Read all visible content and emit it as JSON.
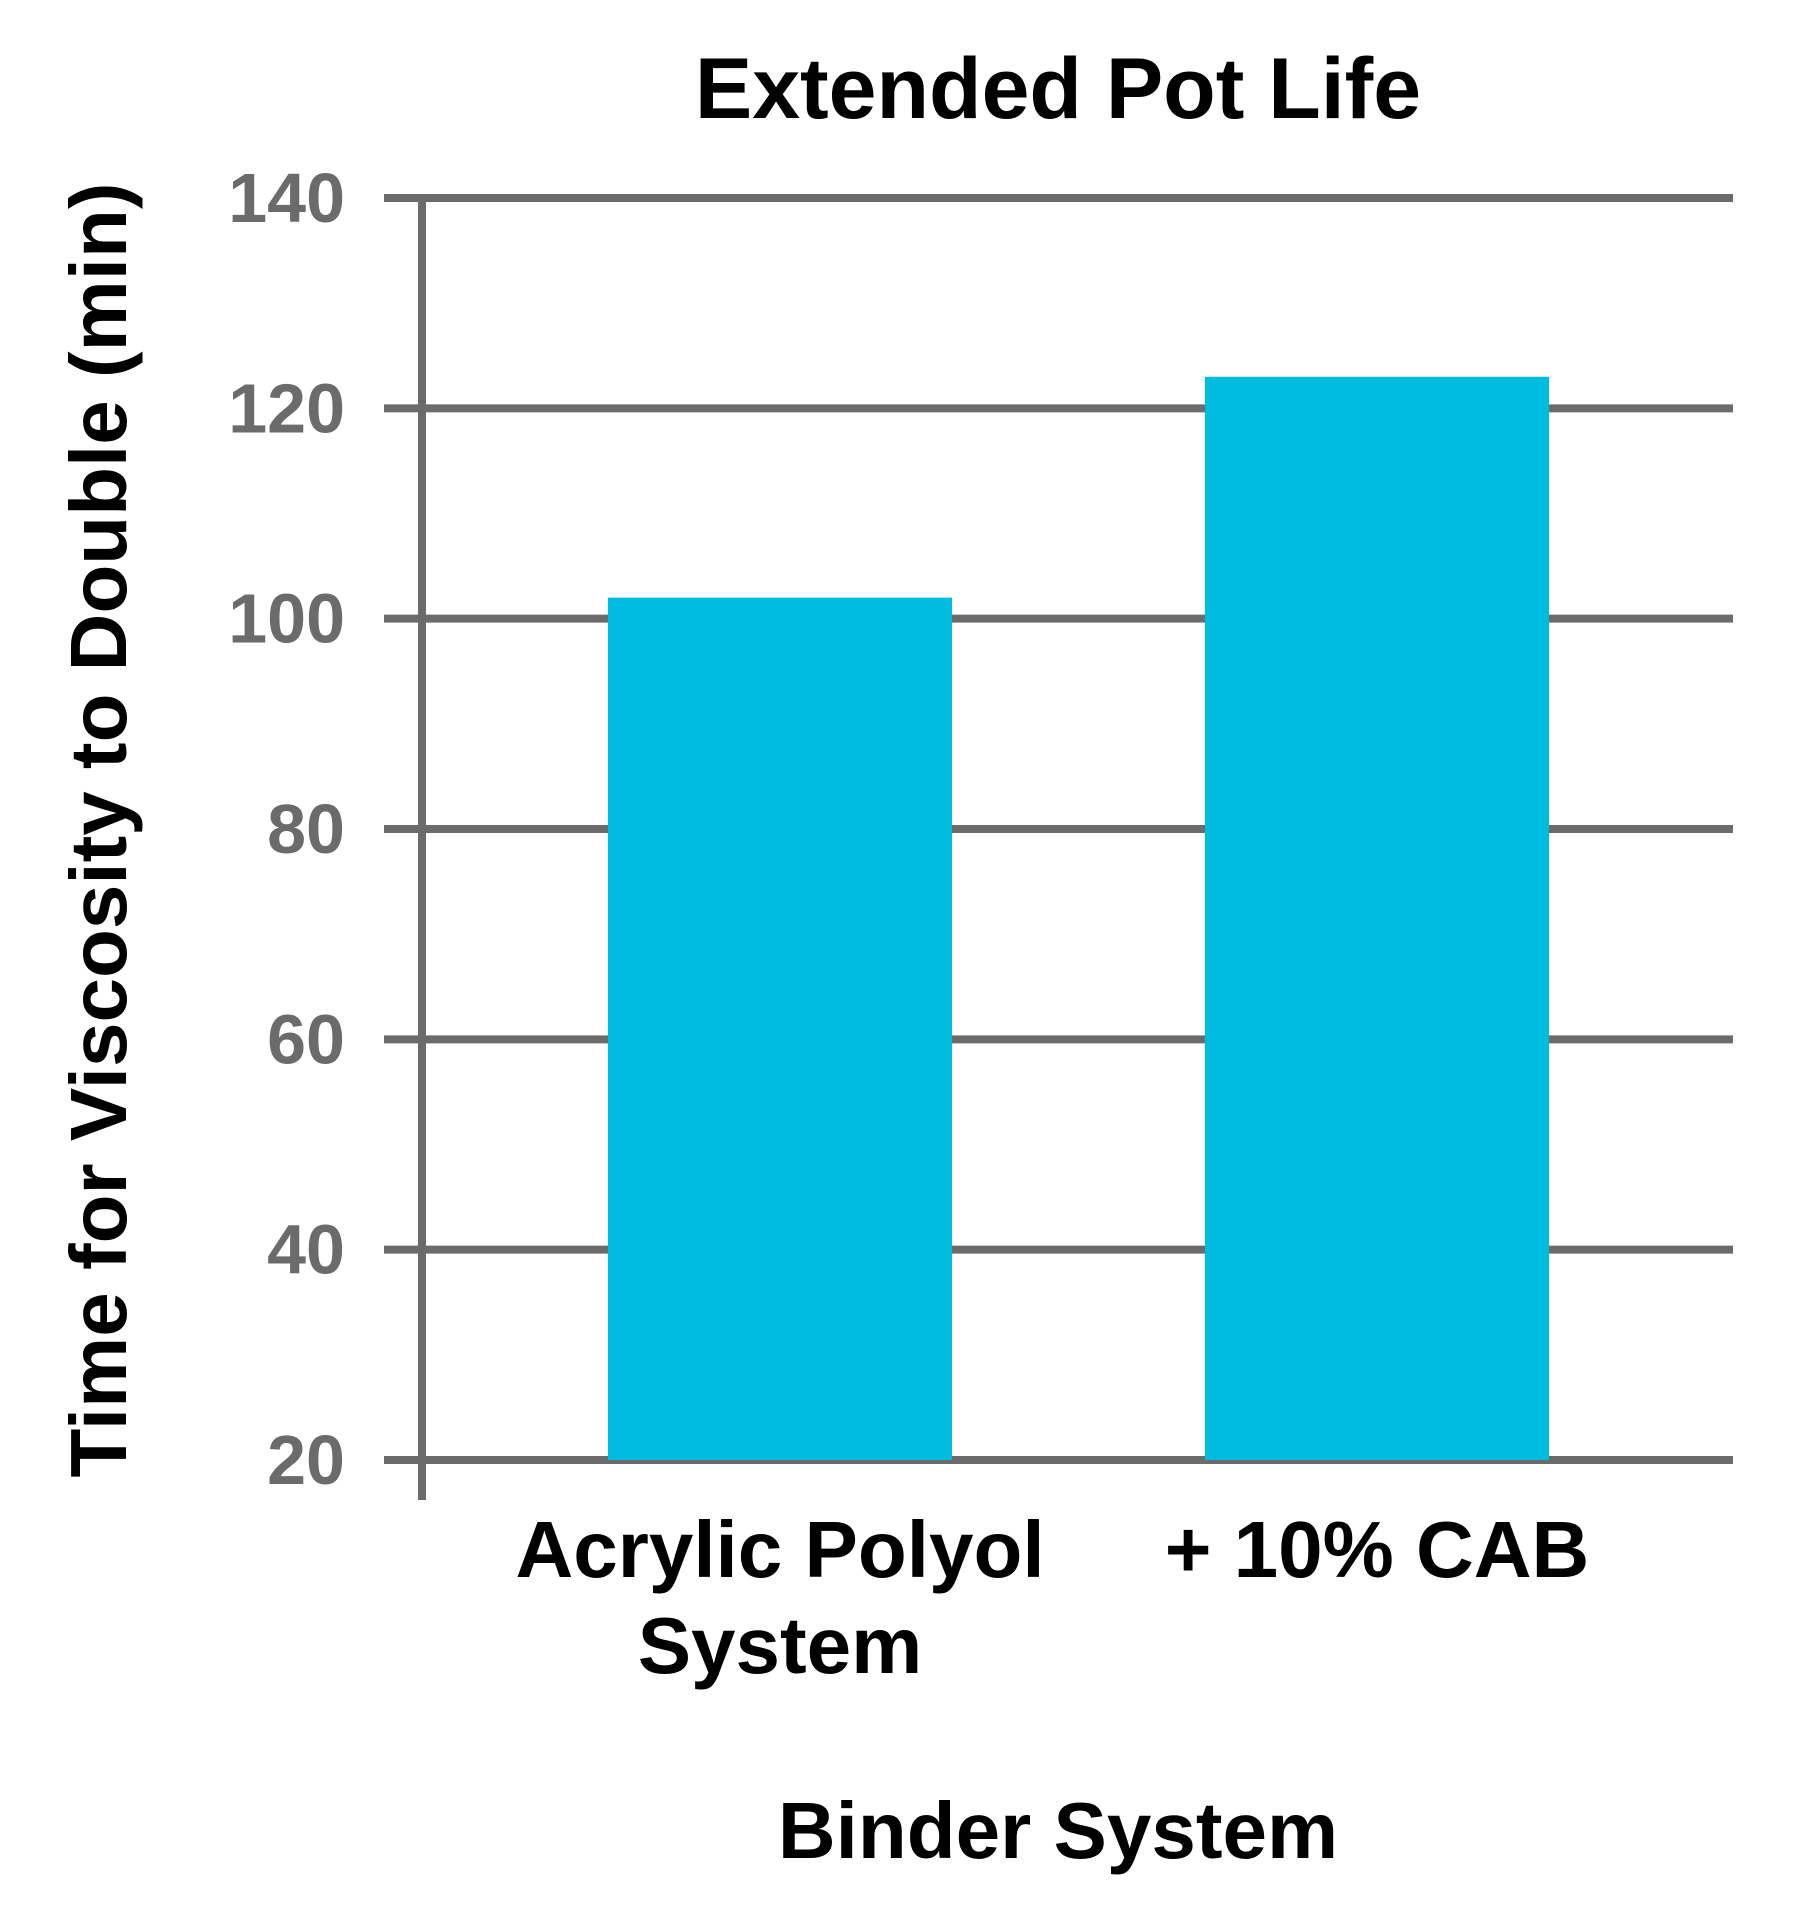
{
  "chart_data": {
    "type": "bar",
    "title": "Extended Pot Life",
    "xlabel": "Binder System",
    "ylabel": "Time for Viscosity to Double (min)",
    "categories": [
      [
        "Acrylic Polyol",
        "System"
      ],
      [
        "+ 10% CAB"
      ]
    ],
    "values": [
      102,
      123
    ],
    "ylim": [
      20,
      140
    ],
    "yticks": [
      "20",
      "40",
      "60",
      "80",
      "100",
      "120",
      "140"
    ],
    "grid": true,
    "colors": {
      "bar": "#00bbe0",
      "grid": "#6b6b6b",
      "tick_label": "#6b6b6b",
      "text": "#000000"
    }
  }
}
